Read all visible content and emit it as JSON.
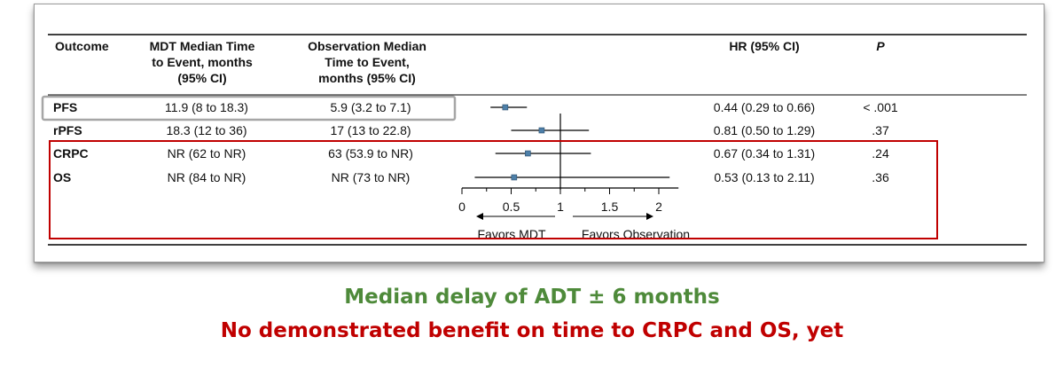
{
  "table": {
    "headers": [
      [
        "Outcome"
      ],
      [
        "MDT Median Time",
        "to Event, months",
        "(95% CI)"
      ],
      [
        "Observation Median",
        "Time to Event,",
        "months (95% CI)"
      ],
      [
        "HR (95% CI)"
      ],
      [
        "P"
      ]
    ],
    "rows": [
      {
        "outcome": "PFS",
        "mdt": "11.9 (8 to 18.3)",
        "obs": "5.9 (3.2 to 7.1)",
        "hr_text": "0.44 (0.29 to 0.66)",
        "p": "< .001"
      },
      {
        "outcome": "rPFS",
        "mdt": "18.3 (12 to 36)",
        "obs": "17 (13 to 22.8)",
        "hr_text": "0.81 (0.50 to 1.29)",
        "p": ".37"
      },
      {
        "outcome": "CRPC",
        "mdt": "NR (62 to NR)",
        "obs": "63 (53.9 to NR)",
        "hr_text": "0.67 (0.34 to 1.31)",
        "p": ".24"
      },
      {
        "outcome": "OS",
        "mdt": "NR (84 to NR)",
        "obs": "NR (73 to NR)",
        "hr_text": "0.53 (0.13 to 2.11)",
        "p": ".36"
      }
    ]
  },
  "chart_data": {
    "type": "scatter",
    "subtype": "forest-plot",
    "categories": [
      "PFS",
      "rPFS",
      "CRPC",
      "OS"
    ],
    "series": [
      {
        "values": [
          0.44,
          0.81,
          0.67,
          0.53
        ],
        "ci_low": [
          0.29,
          0.5,
          0.34,
          0.13
        ],
        "ci_high": [
          0.66,
          1.29,
          1.31,
          2.11
        ]
      }
    ],
    "xlim": [
      0,
      2.2
    ],
    "xticks": [
      0,
      0.5,
      1,
      1.5,
      2
    ],
    "xtick_labels": [
      "0",
      "0.5",
      "1",
      "1.5",
      "2"
    ],
    "reference_line": 1,
    "direction_labels": {
      "left": "Favors MDT",
      "right": "Favors Observation"
    },
    "highlight_boxes": [
      {
        "rows": [
          "PFS"
        ],
        "color": "#a6a6a6"
      },
      {
        "rows": [
          "CRPC",
          "OS"
        ],
        "color": "#c00000"
      }
    ],
    "marker_color": "#4d7fa8"
  },
  "captions": {
    "line1": "Median delay of ADT  ± 6 months",
    "line2": "No demonstrated benefit on time to CRPC and OS, yet"
  }
}
